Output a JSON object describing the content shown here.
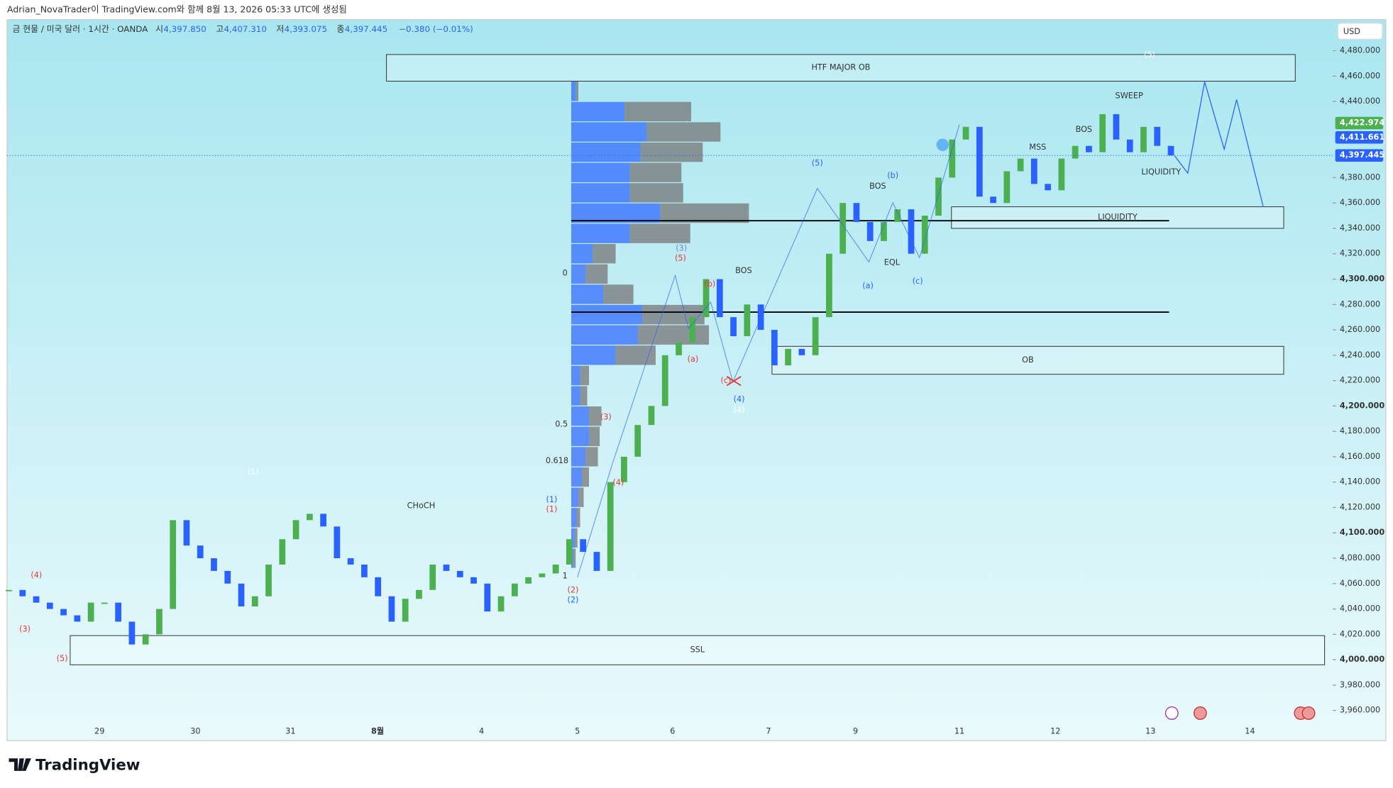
{
  "header": {
    "author_note": "Adrian_NovaTrader이 TradingView.com와 함께 8월 13, 2026 05:33 UTC에 생성됨",
    "symbol": "금 현물 / 미국 달러 · 1시간 · OANDA",
    "ohlc": [
      {
        "label": "시",
        "value": "4,397.850"
      },
      {
        "label": "고",
        "value": "4,407.310"
      },
      {
        "label": "저",
        "value": "4,393.075"
      },
      {
        "label": "종",
        "value": "4,397.445"
      }
    ],
    "change": "−0.380 (−0.01%)",
    "currency": "USD"
  },
  "footer": {
    "brand": "TradingView"
  },
  "chart_data": {
    "type": "candlestick",
    "up_color": "#4caf50",
    "down_color": "#2962ff",
    "close": [
      4055,
      4050,
      4045,
      4040,
      4035,
      4030,
      4045,
      4045,
      4030,
      4012,
      4020,
      4040,
      4110,
      4090,
      4080,
      4070,
      4060,
      4042,
      4050,
      4075,
      4095,
      4110,
      4115,
      4105,
      4080,
      4075,
      4065,
      4050,
      4030,
      4048,
      4055,
      4075,
      4070,
      4065,
      4060,
      4038,
      4050,
      4060,
      4065,
      4068,
      4075,
      4095,
      4085,
      4070,
      4140,
      4160,
      4185,
      4200,
      4240,
      4250,
      4270,
      4300,
      4270,
      4255,
      4280,
      4260,
      4232,
      4245,
      4240,
      4270,
      4320,
      4360,
      4345,
      4330,
      4345,
      4355,
      4320,
      4350,
      4380,
      4410,
      4420,
      4365,
      4360,
      4385,
      4395,
      4375,
      4370,
      4395,
      4405,
      4400,
      4430,
      4410,
      4400,
      4420,
      4405,
      4397.445
    ],
    "ylim": [
      3956.5,
      4504.5
    ],
    "yticks": [
      {
        "value": 4480,
        "label": "4,480.000"
      },
      {
        "value": 4460,
        "label": "4,460.000"
      },
      {
        "value": 4440,
        "label": "4,440.000"
      },
      {
        "value": 4380,
        "label": "4,380.000"
      },
      {
        "value": 4360,
        "label": "4,360.000"
      },
      {
        "value": 4340,
        "label": "4,340.000"
      },
      {
        "value": 4320,
        "label": "4,320.000"
      },
      {
        "value": 4300,
        "label": "4,300.000"
      },
      {
        "value": 4280,
        "label": "4,280.000"
      },
      {
        "value": 4260,
        "label": "4,260.000"
      },
      {
        "value": 4240,
        "label": "4,240.000"
      },
      {
        "value": 4220,
        "label": "4,220.000"
      },
      {
        "value": 4200,
        "label": "4,200.000"
      },
      {
        "value": 4180,
        "label": "4,180.000"
      },
      {
        "value": 4160,
        "label": "4,160.000"
      },
      {
        "value": 4140,
        "label": "4,140.000"
      },
      {
        "value": 4120,
        "label": "4,120.000"
      },
      {
        "value": 4100,
        "label": "4,100.000"
      },
      {
        "value": 4080,
        "label": "4,080.000"
      },
      {
        "value": 4060,
        "label": "4,060.000"
      },
      {
        "value": 4040,
        "label": "4,040.000"
      },
      {
        "value": 4020,
        "label": "4,020.000"
      },
      {
        "value": 4000,
        "label": "4,000.000"
      },
      {
        "value": 3980,
        "label": "3,980.000"
      },
      {
        "value": 3960,
        "label": "3,960.000"
      }
    ],
    "categories": [
      "29",
      "30",
      "31",
      "8월",
      "4",
      "5",
      "6",
      "7",
      "9",
      "11",
      "12",
      "13",
      "14"
    ],
    "price_labels": [
      {
        "value": 4422.974,
        "label": "4,422.974",
        "color": "#4caf50"
      },
      {
        "value": 4411.661,
        "label": "4,411.661",
        "color": "#2962ff"
      },
      {
        "value": 4397.445,
        "label": "4,397.445",
        "color": "#2962ff"
      }
    ],
    "zones": [
      {
        "label": "HTF MAJOR OB",
        "top": 4477,
        "bottom": 4456
      },
      {
        "label": "LIQUIDITY",
        "top": 4357,
        "bottom": 4340
      },
      {
        "label": "OB",
        "top": 4247,
        "bottom": 4225
      },
      {
        "label": "SSL",
        "top": 4019,
        "bottom": 3996
      }
    ],
    "levels": [
      4346,
      4274
    ],
    "volume_profile": [
      {
        "price": 4448,
        "buy": 5,
        "sell": 3
      },
      {
        "price": 4432,
        "buy": 60,
        "sell": 75
      },
      {
        "price": 4416,
        "buy": 85,
        "sell": 83
      },
      {
        "price": 4400,
        "buy": 78,
        "sell": 70
      },
      {
        "price": 4384,
        "buy": 66,
        "sell": 58
      },
      {
        "price": 4368,
        "buy": 66,
        "sell": 60
      },
      {
        "price": 4352,
        "buy": 100,
        "sell": 100
      },
      {
        "price": 4336,
        "buy": 66,
        "sell": 68
      },
      {
        "price": 4320,
        "buy": 24,
        "sell": 26
      },
      {
        "price": 4304,
        "buy": 16,
        "sell": 25
      },
      {
        "price": 4288,
        "buy": 36,
        "sell": 34
      },
      {
        "price": 4272,
        "buy": 80,
        "sell": 70
      },
      {
        "price": 4256,
        "buy": 75,
        "sell": 80
      },
      {
        "price": 4240,
        "buy": 50,
        "sell": 45
      },
      {
        "price": 4224,
        "buy": 10,
        "sell": 10
      },
      {
        "price": 4208,
        "buy": 10,
        "sell": 8
      },
      {
        "price": 4192,
        "buy": 20,
        "sell": 14
      },
      {
        "price": 4176,
        "buy": 20,
        "sell": 12
      },
      {
        "price": 4160,
        "buy": 16,
        "sell": 14
      },
      {
        "price": 4144,
        "buy": 12,
        "sell": 8
      },
      {
        "price": 4128,
        "buy": 8,
        "sell": 6
      },
      {
        "price": 4112,
        "buy": 6,
        "sell": 4
      },
      {
        "price": 4096,
        "buy": 4,
        "sell": 3
      },
      {
        "price": 4080,
        "buy": 3,
        "sell": 2
      }
    ],
    "annotations": [
      {
        "text": "BOS",
        "color": "#333333"
      },
      {
        "text": "CHoCH",
        "color": "#333333"
      },
      {
        "text": "BOS",
        "color": "#333333"
      },
      {
        "text": "EQL",
        "color": "#333333"
      },
      {
        "text": "MSS",
        "color": "#333333"
      },
      {
        "text": "BOS",
        "color": "#333333"
      },
      {
        "text": "SWEEP",
        "color": "#333333"
      },
      {
        "text": "LIQUIDITY",
        "color": "#333333"
      },
      {
        "text": "0",
        "color": "#333333"
      },
      {
        "text": "0.5",
        "color": "#333333"
      },
      {
        "text": "0.618",
        "color": "#333333"
      },
      {
        "text": "1",
        "color": "#333333"
      },
      {
        "text": "(4)",
        "color": "#e53935"
      },
      {
        "text": "(3)",
        "color": "#e53935"
      },
      {
        "text": "(5)",
        "color": "#e53935"
      },
      {
        "text": "(1)",
        "color": "#ffffff"
      },
      {
        "text": "(1)",
        "color": "#2962ff"
      },
      {
        "text": "(1)",
        "color": "#e53935"
      },
      {
        "text": "(2)",
        "color": "#e53935"
      },
      {
        "text": "(2)",
        "color": "#2962ff"
      },
      {
        "text": "(3)",
        "color": "#e53935"
      },
      {
        "text": "(4)",
        "color": "#e53935"
      },
      {
        "text": "(3)",
        "color": "#7986cb"
      },
      {
        "text": "(5)",
        "color": "#e53935"
      },
      {
        "text": "(b)",
        "color": "#e53935"
      },
      {
        "text": "(a)",
        "color": "#e53935"
      },
      {
        "text": "(c)",
        "color": "#e53935"
      },
      {
        "text": "(4)",
        "color": "#2962ff"
      },
      {
        "text": "(4)",
        "color": "#ffffff"
      },
      {
        "text": "(5)",
        "color": "#2962ff"
      },
      {
        "text": "(b)",
        "color": "#2962ff"
      },
      {
        "text": "(a)",
        "color": "#2962ff"
      },
      {
        "text": "(c)",
        "color": "#2962ff"
      },
      {
        "text": "(5)",
        "color": "#ffffff"
      }
    ]
  }
}
